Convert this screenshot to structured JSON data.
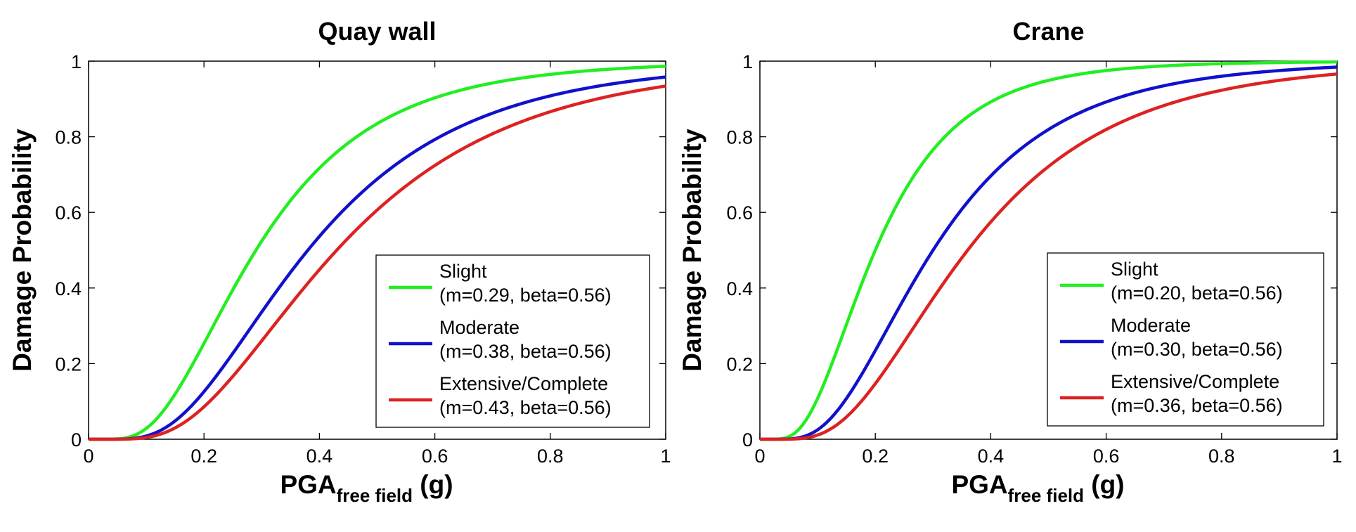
{
  "chart_data": [
    {
      "type": "line",
      "title": "Quay wall",
      "xlabel_main": "PGA",
      "xlabel_sub": "free field",
      "xlabel_unit": "(g)",
      "ylabel": "Damage Probability",
      "xlim": [
        0,
        1
      ],
      "ylim": [
        0,
        1
      ],
      "xticks": [
        0,
        0.2,
        0.4,
        0.6,
        0.8,
        1
      ],
      "xtick_labels": [
        "0",
        "0.2",
        "0.4",
        "0.6",
        "0.8",
        "1"
      ],
      "yticks": [
        0,
        0.2,
        0.4,
        0.6,
        0.8,
        1
      ],
      "ytick_labels": [
        "0",
        "0.2",
        "0.4",
        "0.6",
        "0.8",
        "1"
      ],
      "grid": false,
      "legend_position": "bottom-right",
      "series": [
        {
          "name": "Slight",
          "params": "(m=0.29, beta=0.56)",
          "m": 0.29,
          "beta": 0.56,
          "color": "#22ee22"
        },
        {
          "name": "Moderate",
          "params": "(m=0.38, beta=0.56)",
          "m": 0.38,
          "beta": 0.56,
          "color": "#1111cc"
        },
        {
          "name": "Extensive/Complete",
          "params": "(m=0.43, beta=0.56)",
          "m": 0.43,
          "beta": 0.56,
          "color": "#dd2222"
        }
      ]
    },
    {
      "type": "line",
      "title": "Crane",
      "xlabel_main": "PGA",
      "xlabel_sub": "free field",
      "xlabel_unit": "(g)",
      "ylabel": "Damage Probability",
      "xlim": [
        0,
        1
      ],
      "ylim": [
        0,
        1
      ],
      "xticks": [
        0,
        0.2,
        0.4,
        0.6,
        0.8,
        1
      ],
      "xtick_labels": [
        "0",
        "0.2",
        "0.4",
        "0.6",
        "0.8",
        "1"
      ],
      "yticks": [
        0,
        0.2,
        0.4,
        0.6,
        0.8,
        1
      ],
      "ytick_labels": [
        "0",
        "0.2",
        "0.4",
        "0.6",
        "0.8",
        "1"
      ],
      "grid": false,
      "legend_position": "bottom-right",
      "series": [
        {
          "name": "Slight",
          "params": "(m=0.20, beta=0.56)",
          "m": 0.2,
          "beta": 0.56,
          "color": "#22ee22"
        },
        {
          "name": "Moderate",
          "params": "(m=0.30, beta=0.56)",
          "m": 0.3,
          "beta": 0.56,
          "color": "#1111cc"
        },
        {
          "name": "Extensive/Complete",
          "params": "(m=0.36, beta=0.56)",
          "m": 0.36,
          "beta": 0.56,
          "color": "#dd2222"
        }
      ]
    }
  ]
}
